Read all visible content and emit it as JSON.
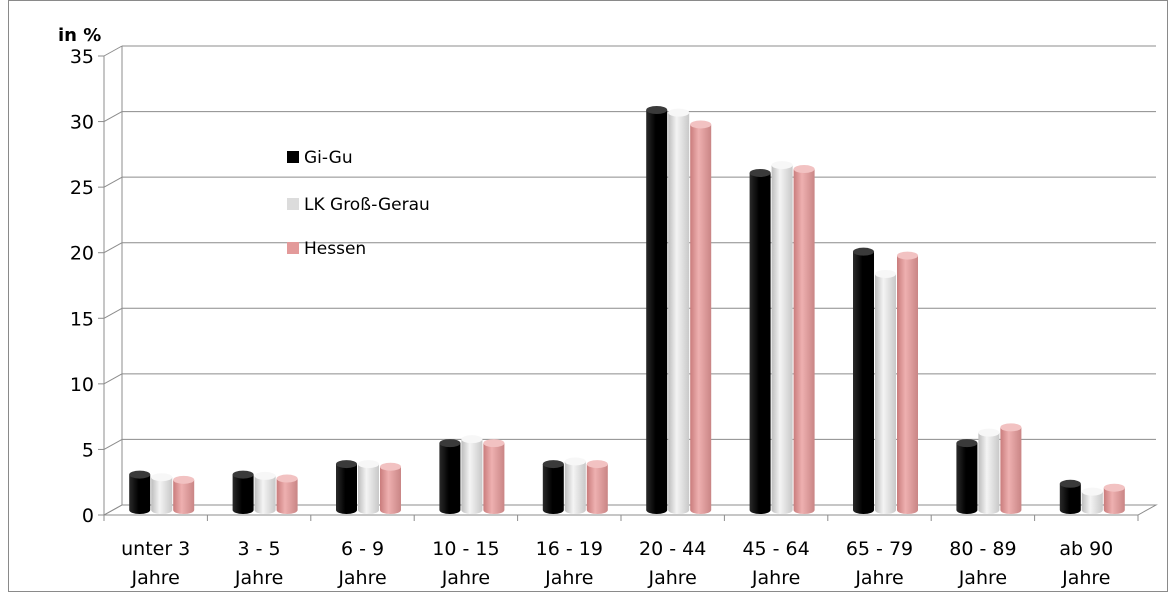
{
  "chart_data": {
    "type": "bar",
    "ylabel": "in %",
    "ylim": [
      0,
      35
    ],
    "yticks": [
      "0",
      "5",
      "10",
      "15",
      "20",
      "25",
      "30",
      "35"
    ],
    "grid": true,
    "legend_position": "top-left",
    "categories": [
      [
        "unter 3",
        "Jahre"
      ],
      [
        "3 - 5",
        "Jahre"
      ],
      [
        "6 - 9",
        "Jahre"
      ],
      [
        "10 - 15",
        "Jahre"
      ],
      [
        "16 - 19",
        "Jahre"
      ],
      [
        "20 - 44",
        "Jahre"
      ],
      [
        "45 - 64",
        "Jahre"
      ],
      [
        "65 - 79",
        "Jahre"
      ],
      [
        "80 - 89",
        "Jahre"
      ],
      [
        "ab 90",
        "Jahre"
      ]
    ],
    "series": [
      {
        "name": "Gi-Gu",
        "color": "#000000",
        "values": [
          2.7,
          2.7,
          3.5,
          5.1,
          3.5,
          30.5,
          25.7,
          19.7,
          5.1,
          2.0
        ]
      },
      {
        "name": "LK Groß-Gerau",
        "color": "#dcdcdc",
        "values": [
          2.5,
          2.6,
          3.5,
          5.4,
          3.7,
          30.3,
          26.3,
          18.0,
          5.9,
          1.4
        ]
      },
      {
        "name": "Hessen",
        "color": "#e39a9a",
        "values": [
          2.3,
          2.4,
          3.3,
          5.1,
          3.5,
          29.4,
          26.0,
          19.4,
          6.3,
          1.7
        ]
      }
    ]
  }
}
